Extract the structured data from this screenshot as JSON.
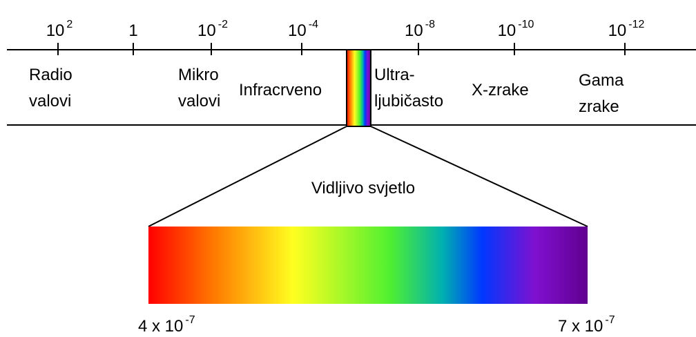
{
  "scale_ticks": [
    {
      "base": "10",
      "exp": "2"
    },
    {
      "base": "1"
    },
    {
      "base": "10",
      "exp": "-2"
    },
    {
      "base": "10",
      "exp": "-4"
    },
    {
      "base": "10",
      "exp": "-8"
    },
    {
      "base": "10",
      "exp": "-10"
    },
    {
      "base": "10",
      "exp": "-12"
    }
  ],
  "bands": [
    {
      "lines": [
        "Radio",
        "valovi"
      ]
    },
    {
      "lines": [
        "Mikro",
        "valovi"
      ]
    },
    {
      "lines": [
        "Infracrveno"
      ]
    },
    {
      "lines": [
        "Ultra-",
        "ljubičasto"
      ]
    },
    {
      "lines": [
        "X-zrake"
      ]
    },
    {
      "lines": [
        "Gama",
        "zrake"
      ]
    }
  ],
  "visible_title": "Vidljivo svjetlo",
  "visible_range": [
    {
      "base": "4 x 10",
      "exp": "-7"
    },
    {
      "base": "7 x 10",
      "exp": "-7"
    }
  ]
}
